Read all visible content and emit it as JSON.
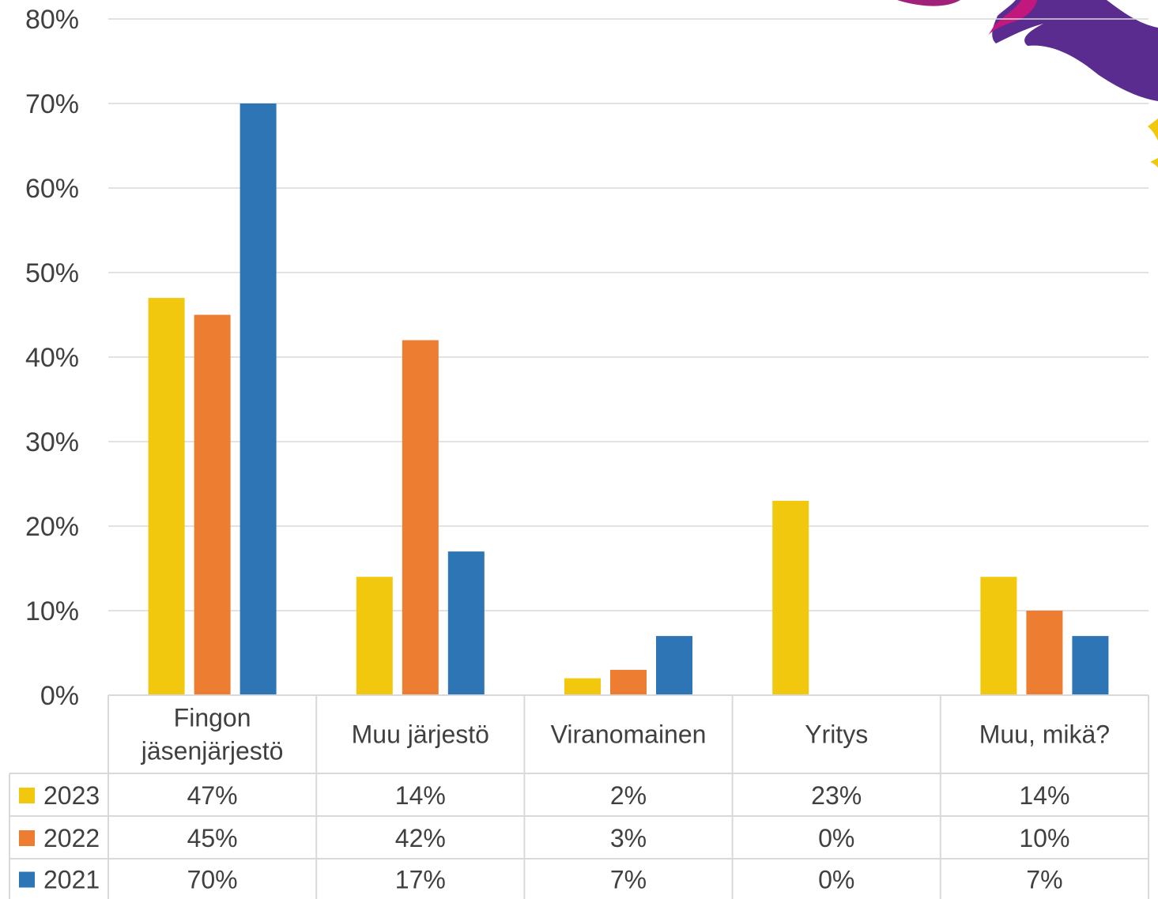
{
  "chart_data": {
    "type": "bar",
    "categories": [
      "Fingon jäsenjärjestö",
      "Muu järjestö",
      "Viranomainen",
      "Yritys",
      "Muu, mikä?"
    ],
    "category_lines": [
      [
        "Fingon",
        "jäsenjärjestö"
      ],
      [
        "Muu järjestö"
      ],
      [
        "Viranomainen"
      ],
      [
        "Yritys"
      ],
      [
        "Muu, mikä?"
      ]
    ],
    "series": [
      {
        "name": "2023",
        "values": [
          47,
          14,
          2,
          23,
          14
        ],
        "color": "#F2C80F"
      },
      {
        "name": "2022",
        "values": [
          45,
          42,
          3,
          0,
          10
        ],
        "color": "#ED7D31"
      },
      {
        "name": "2021",
        "values": [
          70,
          17,
          7,
          0,
          7
        ],
        "color": "#2E75B6"
      }
    ],
    "table_values": [
      [
        "47%",
        "14%",
        "2%",
        "23%",
        "14%"
      ],
      [
        "45%",
        "42%",
        "3%",
        "0%",
        "10%"
      ],
      [
        "70%",
        "17%",
        "7%",
        "0%",
        "7%"
      ]
    ],
    "y_ticks": [
      "0%",
      "10%",
      "20%",
      "30%",
      "40%",
      "50%",
      "60%",
      "70%",
      "80%"
    ],
    "ylim": [
      0,
      80
    ],
    "y_unit": "%",
    "grid": true,
    "legend": "data-table",
    "title": "",
    "xlabel": "",
    "ylabel": ""
  }
}
